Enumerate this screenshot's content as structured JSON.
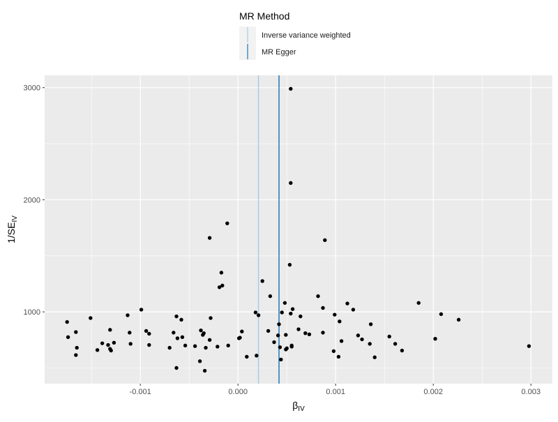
{
  "chart_data": {
    "type": "scatter",
    "title": "",
    "xlabel": "β",
    "xlabel_sub": "IV",
    "ylabel": "1/SE",
    "ylabel_sub": "IV",
    "xlim": [
      -0.00198,
      0.00322
    ],
    "ylim": [
      360,
      3110
    ],
    "x_ticks": [
      -0.001,
      0.0,
      0.001,
      0.002,
      0.003
    ],
    "x_tick_labels": [
      "-0.001",
      "0.000",
      "0.001",
      "0.002",
      "0.003"
    ],
    "y_ticks": [
      1000,
      2000,
      3000
    ],
    "y_tick_labels": [
      "1000",
      "2000",
      "3000"
    ],
    "grid": true,
    "legend": {
      "title": "MR Method",
      "position": "top",
      "items": [
        {
          "label": "Inverse variance weighted",
          "color": "#a6cee3"
        },
        {
          "label": "MR Egger",
          "color": "#1f78b4"
        }
      ]
    },
    "vlines": [
      {
        "method": "Inverse variance weighted",
        "x": 0.00021,
        "color": "#a6cee3"
      },
      {
        "method": "MR Egger",
        "x": 0.00042,
        "color": "#1f78b4"
      }
    ],
    "points": [
      {
        "x": 0.00054,
        "y": 2990
      },
      {
        "x": 0.00054,
        "y": 2150
      },
      {
        "x": -0.00011,
        "y": 1790
      },
      {
        "x": -0.00029,
        "y": 1660
      },
      {
        "x": 0.00089,
        "y": 1640
      },
      {
        "x": 0.00053,
        "y": 1420
      },
      {
        "x": -0.00017,
        "y": 1350
      },
      {
        "x": 0.00025,
        "y": 1275
      },
      {
        "x": -0.00016,
        "y": 1235
      },
      {
        "x": -0.00019,
        "y": 1220
      },
      {
        "x": 0.00033,
        "y": 1140
      },
      {
        "x": 0.00082,
        "y": 1140
      },
      {
        "x": 0.00185,
        "y": 1080
      },
      {
        "x": 0.00048,
        "y": 1080
      },
      {
        "x": 0.00112,
        "y": 1075
      },
      {
        "x": 0.00087,
        "y": 1035
      },
      {
        "x": 0.00056,
        "y": 1025
      },
      {
        "x": 0.00118,
        "y": 1020
      },
      {
        "x": -0.00099,
        "y": 1020
      },
      {
        "x": 0.00045,
        "y": 995
      },
      {
        "x": 0.00018,
        "y": 995
      },
      {
        "x": 0.00054,
        "y": 985
      },
      {
        "x": 0.00208,
        "y": 980
      },
      {
        "x": 0.00099,
        "y": 975
      },
      {
        "x": 0.00021,
        "y": 970
      },
      {
        "x": -0.00113,
        "y": 970
      },
      {
        "x": 0.00064,
        "y": 960
      },
      {
        "x": -0.00063,
        "y": 960
      },
      {
        "x": -0.00151,
        "y": 945
      },
      {
        "x": -0.00028,
        "y": 945
      },
      {
        "x": 0.00226,
        "y": 930
      },
      {
        "x": -0.00058,
        "y": 930
      },
      {
        "x": 0.00104,
        "y": 915
      },
      {
        "x": -0.00175,
        "y": 910
      },
      {
        "x": 0.00042,
        "y": 890
      },
      {
        "x": 0.00136,
        "y": 890
      },
      {
        "x": 0.00062,
        "y": 845
      },
      {
        "x": -0.00131,
        "y": 840
      },
      {
        "x": -0.00038,
        "y": 835
      },
      {
        "x": -0.00094,
        "y": 830
      },
      {
        "x": 0.00031,
        "y": 830
      },
      {
        "x": 4e-05,
        "y": 825
      },
      {
        "x": -0.00166,
        "y": 820
      },
      {
        "x": -0.00066,
        "y": 815
      },
      {
        "x": -0.00111,
        "y": 815
      },
      {
        "x": 0.00087,
        "y": 815
      },
      {
        "x": 0.00069,
        "y": 810
      },
      {
        "x": -0.00035,
        "y": 810
      },
      {
        "x": -0.00091,
        "y": 805
      },
      {
        "x": 0.00073,
        "y": 800
      },
      {
        "x": -0.00036,
        "y": 795
      },
      {
        "x": 0.00049,
        "y": 795
      },
      {
        "x": 0.00041,
        "y": 790
      },
      {
        "x": 0.00123,
        "y": 790
      },
      {
        "x": 0.00155,
        "y": 780
      },
      {
        "x": -0.00174,
        "y": 775
      },
      {
        "x": -0.00057,
        "y": 775
      },
      {
        "x": 2e-05,
        "y": 770
      },
      {
        "x": 1e-05,
        "y": 765
      },
      {
        "x": -0.00062,
        "y": 765
      },
      {
        "x": 0.00202,
        "y": 760
      },
      {
        "x": 0.00127,
        "y": 755
      },
      {
        "x": -0.00029,
        "y": 750
      },
      {
        "x": 0.00106,
        "y": 740
      },
      {
        "x": 0.00037,
        "y": 730
      },
      {
        "x": -0.00127,
        "y": 725
      },
      {
        "x": -0.00139,
        "y": 720
      },
      {
        "x": 0.00135,
        "y": 715
      },
      {
        "x": 0.00161,
        "y": 715
      },
      {
        "x": -0.0011,
        "y": 715
      },
      {
        "x": -0.00091,
        "y": 705
      },
      {
        "x": -0.00133,
        "y": 705
      },
      {
        "x": -0.00054,
        "y": 700
      },
      {
        "x": -0.0001,
        "y": 700
      },
      {
        "x": 0.00055,
        "y": 700
      },
      {
        "x": 0.00298,
        "y": 695
      },
      {
        "x": -0.00044,
        "y": 695
      },
      {
        "x": 0.00055,
        "y": 690
      },
      {
        "x": -0.00021,
        "y": 690
      },
      {
        "x": 0.00043,
        "y": 685
      },
      {
        "x": -0.0007,
        "y": 680
      },
      {
        "x": -0.00033,
        "y": 680
      },
      {
        "x": -0.00165,
        "y": 680
      },
      {
        "x": 0.0005,
        "y": 675
      },
      {
        "x": -0.00131,
        "y": 670
      },
      {
        "x": 0.00049,
        "y": 665
      },
      {
        "x": -0.00144,
        "y": 660
      },
      {
        "x": -0.0013,
        "y": 655
      },
      {
        "x": 0.00168,
        "y": 655
      },
      {
        "x": 0.00098,
        "y": 650
      },
      {
        "x": -0.00166,
        "y": 615
      },
      {
        "x": 0.00019,
        "y": 610
      },
      {
        "x": 9e-05,
        "y": 600
      },
      {
        "x": 0.00103,
        "y": 600
      },
      {
        "x": 0.0014,
        "y": 595
      },
      {
        "x": 0.00044,
        "y": 575
      },
      {
        "x": -0.00039,
        "y": 560
      },
      {
        "x": -0.00063,
        "y": 500
      },
      {
        "x": -0.00034,
        "y": 475
      }
    ]
  }
}
